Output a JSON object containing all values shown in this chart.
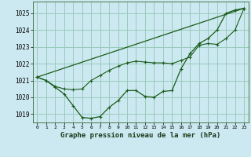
{
  "title": "Graphe pression niveau de la mer (hPa)",
  "bg_color": "#cce8f0",
  "grid_color": "#99ccbb",
  "line_color": "#1a5c1a",
  "xlim": [
    -0.5,
    23.5
  ],
  "ylim": [
    1018.5,
    1025.7
  ],
  "yticks": [
    1019,
    1020,
    1021,
    1022,
    1023,
    1024,
    1025
  ],
  "xticks": [
    0,
    1,
    2,
    3,
    4,
    5,
    6,
    7,
    8,
    9,
    10,
    11,
    12,
    13,
    14,
    15,
    16,
    17,
    18,
    19,
    20,
    21,
    22,
    23
  ],
  "series1_jagged": {
    "x": [
      0,
      1,
      2,
      3,
      4,
      5,
      6,
      7,
      8,
      9,
      10,
      11,
      12,
      13,
      14,
      15,
      16,
      17,
      18,
      19,
      20,
      21,
      22,
      23
    ],
    "y": [
      1021.2,
      1021.0,
      1020.6,
      1020.2,
      1019.5,
      1018.8,
      1018.75,
      1018.85,
      1019.4,
      1019.8,
      1020.4,
      1020.4,
      1020.05,
      1020.0,
      1020.35,
      1020.4,
      1021.7,
      1022.6,
      1023.2,
      1023.5,
      1024.0,
      1025.0,
      1025.2,
      1025.3
    ]
  },
  "series2_smooth": {
    "x": [
      0,
      1,
      2,
      3,
      4,
      5,
      6,
      7,
      8,
      9,
      10,
      11,
      12,
      13,
      14,
      15,
      16,
      17,
      18,
      19,
      20,
      21,
      22,
      23
    ],
    "y": [
      1021.2,
      1021.0,
      1020.65,
      1020.5,
      1020.45,
      1020.5,
      1021.0,
      1021.3,
      1021.6,
      1021.85,
      1022.05,
      1022.15,
      1022.1,
      1022.05,
      1022.05,
      1022.0,
      1022.2,
      1022.4,
      1023.1,
      1023.2,
      1023.15,
      1023.5,
      1024.0,
      1025.3
    ]
  },
  "series3_line": {
    "x": [
      0,
      23
    ],
    "y": [
      1021.2,
      1025.3
    ]
  }
}
